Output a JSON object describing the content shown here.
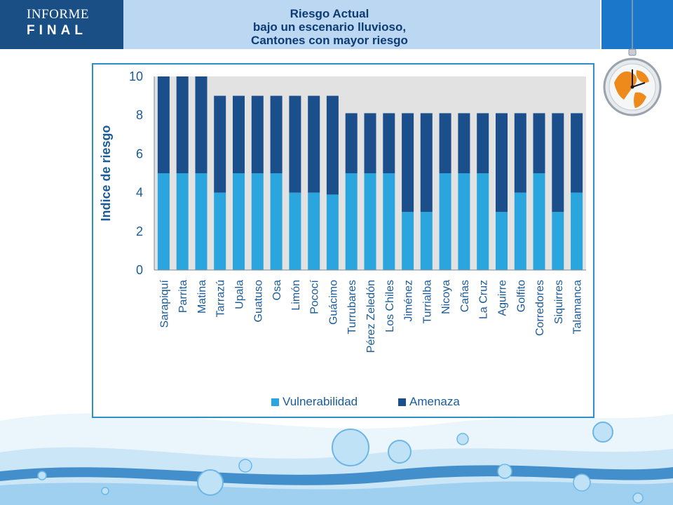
{
  "header": {
    "brand_line1": "INFORME",
    "brand_line2": "FINAL",
    "title_line1": "Riesgo Actual",
    "title_line2": "bajo un escenario lluvioso,",
    "title_line3": "Cantones con mayor riesgo"
  },
  "colors": {
    "vulnerabilidad": "#2aa5de",
    "amenaza": "#1a4f8b",
    "plot_background": "#e2e2e2",
    "frame": "#2b8fca",
    "axis_text": "#1a5c9a"
  },
  "chart_data": {
    "type": "bar",
    "stacked": true,
    "title": "",
    "xlabel": "",
    "ylabel": "Indice de riesgo",
    "ylim": [
      0,
      10
    ],
    "yticks": [
      0,
      2,
      4,
      6,
      8,
      10
    ],
    "grid": false,
    "legend_position": "bottom",
    "categories": [
      "Sarapiquí",
      "Parrita",
      "Matina",
      "Tarrazú",
      "Upala",
      "Guatuso",
      "Osa",
      "Limón",
      "Pococí",
      "Guácimo",
      "Turrubares",
      "Pérez Zeledón",
      "Los Chiles",
      "Jiménez",
      "Turrialba",
      "Nicoya",
      "Cañas",
      "La Cruz",
      "Aguirre",
      "Golfito",
      "Corredores",
      "Siquirres",
      "Talamanca"
    ],
    "series": [
      {
        "name": "Vulnerabilidad",
        "values": [
          5,
          5,
          5,
          4,
          5,
          5,
          5,
          4,
          4,
          3.9,
          5,
          5,
          5,
          3,
          3,
          5,
          5,
          5,
          3,
          4,
          5,
          3,
          4
        ]
      },
      {
        "name": "Amenaza",
        "values": [
          5,
          5,
          5,
          5,
          4,
          4,
          4,
          5,
          5,
          5.1,
          3.1,
          3.1,
          3.1,
          5.1,
          5.1,
          3.1,
          3.1,
          3.1,
          5.1,
          4.1,
          3.1,
          5.1,
          4.1
        ]
      }
    ]
  }
}
